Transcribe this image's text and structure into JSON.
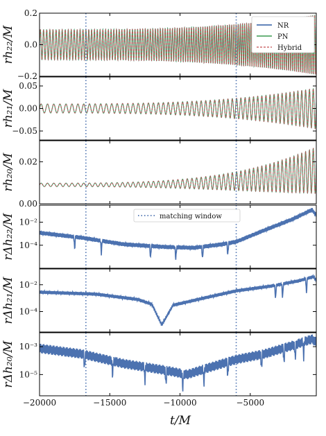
{
  "colors": {
    "nr": "#4c72b0",
    "pn": "#55a868",
    "hybrid": "#c44e52",
    "window": "#4c72b0",
    "axis": "#000000"
  },
  "legend_top": {
    "items": [
      {
        "label": "NR",
        "style": "solid",
        "color_key": "nr"
      },
      {
        "label": "PN",
        "style": "solid",
        "color_key": "pn"
      },
      {
        "label": "Hybrid",
        "style": "dashed",
        "color_key": "hybrid"
      }
    ]
  },
  "legend_window": {
    "label": "matching window"
  },
  "xlabel": "t/M",
  "chart_data": {
    "type": "line",
    "xlim": [
      -20000,
      -300
    ],
    "x_ticks": [
      -20000,
      -15000,
      -10000,
      -5000
    ],
    "x_tick_labels": [
      "−20000",
      "−15000",
      "−10000",
      "−5000"
    ],
    "matching_window": [
      -16700,
      -6000
    ],
    "grid": false,
    "panels": [
      {
        "id": "h22",
        "ylabel": "rh₂₂/M",
        "scale": "linear",
        "ylim": [
          -0.2,
          0.2
        ],
        "ticks": [
          -0.2,
          0.0,
          0.2
        ],
        "tick_labels": [
          "−0.2",
          "0.0",
          "0.2"
        ],
        "series": [
          {
            "name": "NR",
            "kind": "oscillation",
            "x_start": -20000,
            "amp_start": 0.095,
            "amp_end": 0.19,
            "cycles": 86,
            "center": 0.0
          },
          {
            "name": "PN",
            "kind": "oscillation",
            "x_start": -20000,
            "amp_start": 0.095,
            "amp_end": 0.19,
            "cycles": 86,
            "center": 0.0
          },
          {
            "name": "Hybrid",
            "kind": "oscillation",
            "x_start": -20000,
            "amp_start": 0.095,
            "amp_end": 0.19,
            "cycles": 86,
            "center": 0.0
          }
        ]
      },
      {
        "id": "h21",
        "ylabel": "rh₂₁/M",
        "scale": "linear",
        "ylim": [
          -0.07,
          0.07
        ],
        "ticks": [
          -0.05,
          0.0,
          0.05
        ],
        "tick_labels": [
          "−0.05",
          "0.00",
          "0.05"
        ],
        "series": [
          {
            "name": "NR",
            "kind": "oscillation",
            "x_start": -20000,
            "amp_start": 0.01,
            "amp_end": 0.045,
            "cycles": 43,
            "center": 0.0
          },
          {
            "name": "PN",
            "kind": "oscillation",
            "x_start": -20000,
            "amp_start": 0.01,
            "amp_end": 0.045,
            "cycles": 43,
            "center": 0.0
          },
          {
            "name": "Hybrid",
            "kind": "oscillation",
            "x_start": -20000,
            "amp_start": 0.01,
            "amp_end": 0.045,
            "cycles": 43,
            "center": 0.0
          }
        ]
      },
      {
        "id": "h20",
        "ylabel": "rh₂₀/M",
        "scale": "linear",
        "ylim": [
          0.0,
          0.03
        ],
        "ticks": [
          0.0,
          0.02
        ],
        "tick_labels": [
          "0.00",
          "0.02"
        ],
        "series": [
          {
            "name": "NR",
            "kind": "oscillation",
            "x_start": -20000,
            "amp_start": 0.0008,
            "amp_end": 0.011,
            "cycles": 43,
            "center": 0.009,
            "center_end": 0.016
          },
          {
            "name": "PN",
            "kind": "oscillation",
            "x_start": -20000,
            "amp_start": 0.0008,
            "amp_end": 0.011,
            "cycles": 43,
            "center": 0.009,
            "center_end": 0.016
          },
          {
            "name": "Hybrid",
            "kind": "oscillation",
            "x_start": -20000,
            "amp_start": 0.0008,
            "amp_end": 0.011,
            "cycles": 43,
            "center": 0.009,
            "center_end": 0.016
          }
        ]
      },
      {
        "id": "dh22",
        "ylabel": "rΔh₂₂/M",
        "scale": "log",
        "ylim": [
          1e-06,
          0.3
        ],
        "ticks": [
          0.01,
          0.0001
        ],
        "tick_labels": [
          "10⁻²",
          "10⁻⁴"
        ],
        "series": [
          {
            "name": "Δh22",
            "kind": "curve",
            "points": [
              [
                -20000,
                0.0012
              ],
              [
                -17000,
                0.00045
              ],
              [
                -14000,
                0.00012
              ],
              [
                -11000,
                7e-05
              ],
              [
                -9000,
                6e-05
              ],
              [
                -7000,
                0.00012
              ],
              [
                -6000,
                0.0002
              ],
              [
                -4000,
                0.002
              ],
              [
                -2000,
                0.018
              ],
              [
                -600,
                0.12
              ],
              [
                -300,
                0.04
              ]
            ],
            "wiggle": 0.18,
            "dips": [
              -17500,
              -15600,
              -12100,
              -10300,
              -8400,
              -6600
            ]
          }
        ]
      },
      {
        "id": "dh21",
        "ylabel": "rΔh₂₁/M",
        "scale": "log",
        "ylim": [
          3e-06,
          0.15
        ],
        "ticks": [
          0.01,
          0.0001
        ],
        "tick_labels": [
          "10⁻²",
          "10⁻⁴"
        ],
        "series": [
          {
            "name": "Δh21",
            "kind": "curve",
            "points": [
              [
                -20000,
                0.0028
              ],
              [
                -16000,
                0.002
              ],
              [
                -13000,
                0.0008
              ],
              [
                -12000,
                0.00035
              ],
              [
                -11300,
                1e-05
              ],
              [
                -10500,
                0.0003
              ],
              [
                -8000,
                0.0012
              ],
              [
                -6000,
                0.0035
              ],
              [
                -3500,
                0.008
              ],
              [
                -1500,
                0.02
              ],
              [
                -500,
                0.04
              ],
              [
                -300,
                0.02
              ]
            ],
            "wiggle": 0.12,
            "dips": [
              -3200,
              -2700,
              -1000
            ]
          }
        ]
      },
      {
        "id": "dh20",
        "ylabel": "rΔh₂₀/M",
        "scale": "log",
        "ylim": [
          3e-07,
          0.01
        ],
        "ticks": [
          0.001,
          1e-05
        ],
        "tick_labels": [
          "10⁻³",
          "10⁻⁵"
        ],
        "series": [
          {
            "name": "Δh20",
            "kind": "curve",
            "points": [
              [
                -20000,
                0.00075
              ],
              [
                -17000,
                0.0003
              ],
              [
                -14000,
                6e-05
              ],
              [
                -11000,
                2e-05
              ],
              [
                -9500,
                1e-05
              ],
              [
                -8000,
                3e-05
              ],
              [
                -6000,
                0.00012
              ],
              [
                -4000,
                0.0003
              ],
              [
                -2000,
                0.0012
              ],
              [
                -600,
                0.0035
              ],
              [
                -300,
                0.002
              ]
            ],
            "wiggle": 0.35,
            "dips": [
              -16800,
              -14800,
              -12500,
              -11000,
              -9800,
              -8300,
              -6600,
              -4200,
              -2600,
              -1800,
              -1200
            ]
          }
        ]
      }
    ]
  }
}
